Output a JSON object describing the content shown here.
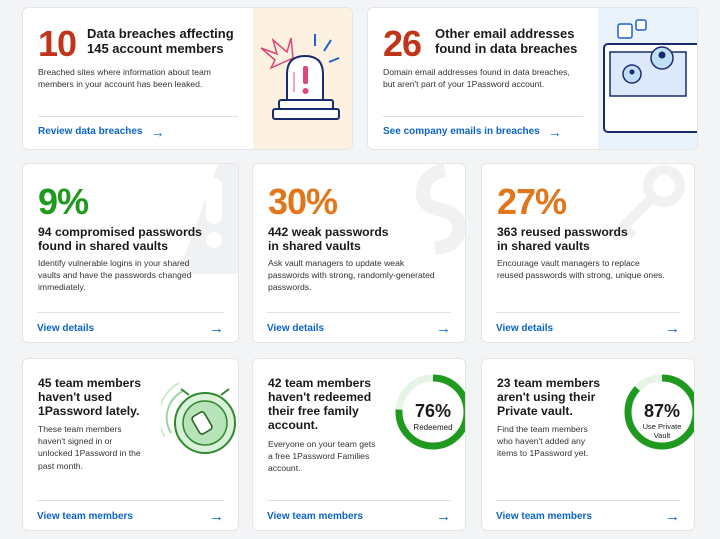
{
  "breaches": {
    "count": "10",
    "title_line1": "Data breaches affecting",
    "title_line2": "145 account members",
    "desc_line1": "Breached sites where information about team",
    "desc_line2": "members in your account has been leaked.",
    "link": "Review data breaches"
  },
  "other_emails": {
    "count": "26",
    "title_line1": "Other email addresses",
    "title_line2": "found in data breaches",
    "desc_line1": "Domain email addresses found in data breaches,",
    "desc_line2": "but aren't part of your 1Password account.",
    "link": "See company emails in breaches"
  },
  "compromised": {
    "percent": "9%",
    "title_line1": "94 compromised passwords",
    "title_line2": "found in shared vaults",
    "desc_line1": "Identify vulnerable logins in your shared",
    "desc_line2": "vaults and have the passwords changed",
    "desc_line3": "immediately.",
    "link": "View details"
  },
  "weak": {
    "percent": "30%",
    "title_line1": "442 weak passwords",
    "title_line2": "in shared vaults",
    "desc_line1": "Ask vault managers to update weak",
    "desc_line2": "passwords with strong, randomly-generated",
    "desc_line3": "passwords.",
    "link": "View details"
  },
  "reused": {
    "percent": "27%",
    "title_line1": "363 reused passwords",
    "title_line2": "in shared vaults",
    "desc_line1": "Encourage vault managers to replace",
    "desc_line2": "reused passwords with strong, unique ones.",
    "link": "View details"
  },
  "inactive": {
    "title_line1": "45 team members",
    "title_line2": "haven't used",
    "title_line3": "1Password lately.",
    "desc_line1": "These team members",
    "desc_line2": "haven't signed in or",
    "desc_line3": "unlocked 1Password in the",
    "desc_line4": "past month.",
    "link": "View team members"
  },
  "families": {
    "title_line1": "42 team members",
    "title_line2": "haven't redeemed",
    "title_line3": "their free family",
    "title_line4": "account.",
    "desc_line1": "Everyone on your team gets",
    "desc_line2": "a free 1Password Families",
    "desc_line3": "account.",
    "ring_percent": "76%",
    "ring_label": "Redeemed",
    "ring_fraction": 0.76,
    "link": "View team members"
  },
  "private_vault": {
    "title_line1": "23 team members",
    "title_line2": "aren't using their",
    "title_line3": "Private vault.",
    "desc_line1": "Find the team members",
    "desc_line2": "who haven't added any",
    "desc_line3": "items to 1Password yet.",
    "ring_percent": "87%",
    "ring_label_line1": "Use Private",
    "ring_label_line2": "Vault",
    "ring_fraction": 0.87,
    "link": "View team members"
  },
  "colors": {
    "red": "#c0351a",
    "green": "#1f9a1f",
    "orange": "#e2761b",
    "link_blue": "#0c64c8"
  }
}
